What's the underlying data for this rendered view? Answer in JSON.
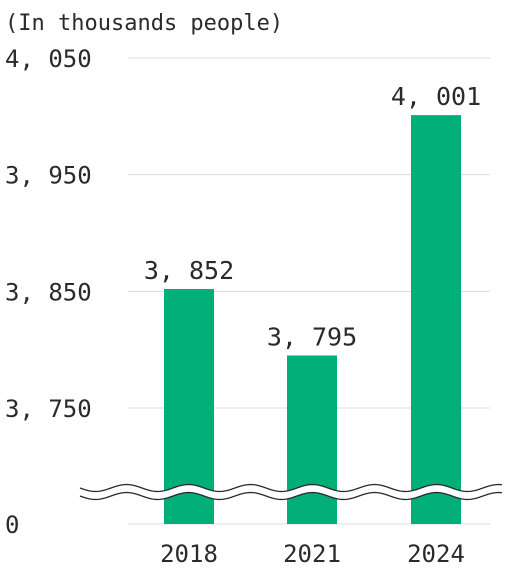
{
  "chart_data": {
    "type": "bar",
    "unit_label": "(In thousands people)",
    "categories": [
      "2018",
      "2021",
      "2024"
    ],
    "values": [
      3852,
      3795,
      4001
    ],
    "value_labels": [
      "3, 852",
      "3, 795",
      "4, 001"
    ],
    "y_ticks": [
      {
        "value": 4050,
        "label": "4, 050"
      },
      {
        "value": 3950,
        "label": "3, 950"
      },
      {
        "value": 3850,
        "label": "3, 850"
      },
      {
        "value": 3750,
        "label": "3, 750"
      },
      {
        "value": 0,
        "label": "0"
      }
    ],
    "ylim": [
      3750,
      4050
    ],
    "axis_break": true,
    "grid": true,
    "legend": "none",
    "colors": {
      "bar": "#00af78",
      "grid": "#dcdcdc",
      "break": "#2a2a2a"
    }
  }
}
